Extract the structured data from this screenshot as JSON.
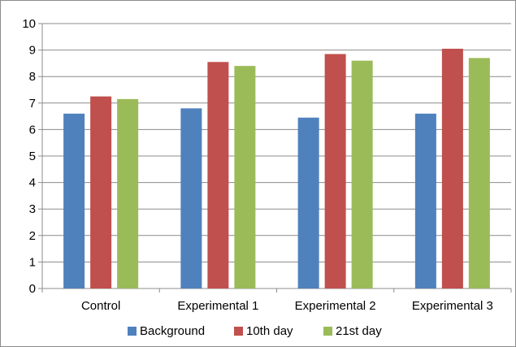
{
  "chart_data": {
    "type": "bar",
    "categories": [
      "Control",
      "Experimental 1",
      "Experimental 2",
      "Experimental 3"
    ],
    "series": [
      {
        "name": "Background",
        "values": [
          6.6,
          6.8,
          6.45,
          6.6
        ],
        "color": "#4f81bd"
      },
      {
        "name": "10th day",
        "values": [
          7.25,
          8.55,
          8.85,
          9.05
        ],
        "color": "#c0504d"
      },
      {
        "name": "21st day",
        "values": [
          7.15,
          8.4,
          8.6,
          8.7
        ],
        "color": "#9bbb59"
      }
    ],
    "ylim": [
      0,
      10
    ],
    "yticks": [
      0,
      1,
      2,
      3,
      4,
      5,
      6,
      7,
      8,
      9,
      10
    ],
    "grid": true,
    "legend_position": "bottom"
  }
}
